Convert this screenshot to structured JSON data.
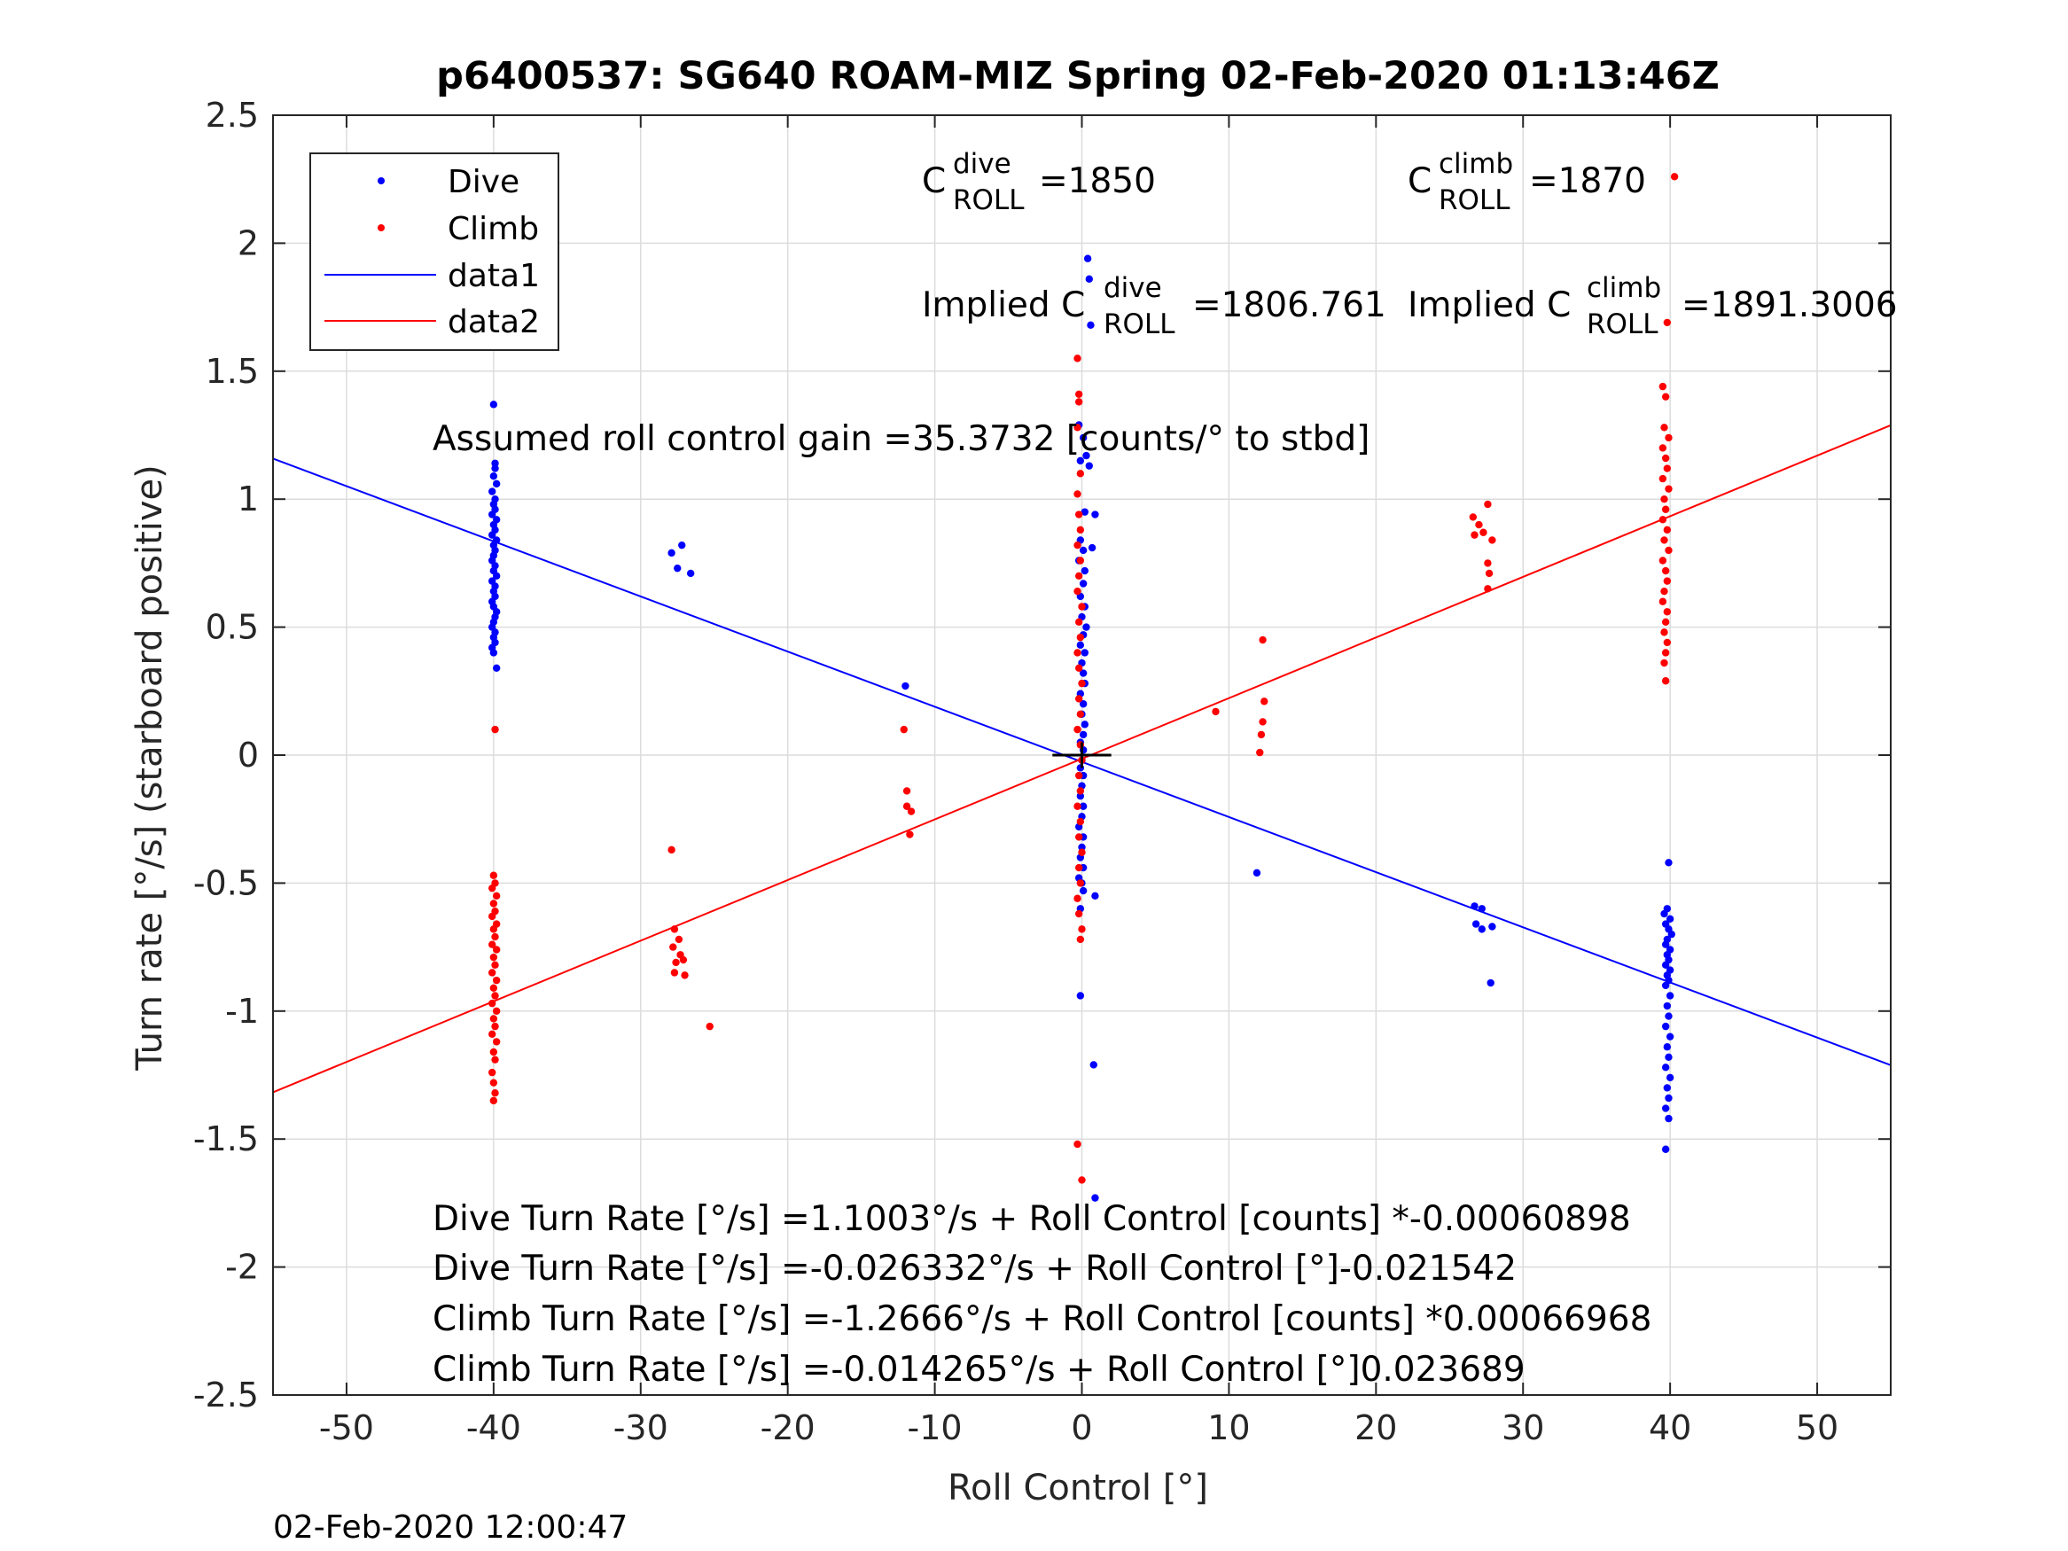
{
  "title": "p6400537: SG640 ROAM-MIZ Spring 02-Feb-2020 01:13:46Z",
  "footer_timestamp": "02-Feb-2020 12:00:47",
  "colors": {
    "dive": "#0000ff",
    "climb": "#ff0000",
    "axis": "#262626",
    "grid": "#dcdcdc"
  },
  "legend": {
    "entries": [
      "Dive",
      "Climb",
      "data1",
      "data2"
    ],
    "placement": "top-left"
  },
  "annotations": {
    "c_dive": {
      "base": "C",
      "sup": "dive",
      "sub": "ROLL",
      "value": "=1850"
    },
    "c_climb": {
      "base": "C",
      "sup": "climb",
      "sub": "ROLL",
      "value": "=1870"
    },
    "implied_dive": {
      "prefix": "Implied C",
      "sup": "dive",
      "sub": "ROLL",
      "value": "=1806.761"
    },
    "implied_climb": {
      "prefix": "Implied C",
      "sup": "climb",
      "sub": "ROLL",
      "value": "=1891.3006"
    },
    "gain": "Assumed roll control gain =35.3732 [counts/° to stbd]",
    "eq1": "Dive Turn Rate [°/s] =1.1003°/s + Roll Control [counts] *-0.00060898",
    "eq2": "Dive Turn Rate [°/s] =-0.026332°/s + Roll Control [°]-0.021542",
    "eq3": "Climb Turn Rate [°/s] =-1.2666°/s + Roll Control [counts] *0.00066968",
    "eq4": "Climb Turn Rate [°/s] =-0.014265°/s + Roll Control [°]0.023689"
  },
  "chart_data": {
    "type": "scatter",
    "xlabel": "Roll Control [°]",
    "ylabel": "Turn rate [°/s] (starboard positive)",
    "xlim": [
      -55,
      55
    ],
    "ylim": [
      -2.5,
      2.5
    ],
    "grid": true,
    "xticks": [
      -50,
      -40,
      -30,
      -20,
      -10,
      0,
      10,
      20,
      30,
      40,
      50
    ],
    "xtick_labels": [
      "-50",
      "-40",
      "-30",
      "-20",
      "-10",
      "0",
      "10",
      "20",
      "30",
      "40",
      "50"
    ],
    "yticks": [
      -2.5,
      -2,
      -1.5,
      -1,
      -0.5,
      0,
      0.5,
      1,
      1.5,
      2,
      2.5
    ],
    "ytick_labels": [
      "-2.5",
      "-2",
      "-1.5",
      "-1",
      "-0.5",
      "0",
      "0.5",
      "1",
      "1.5",
      "2",
      "2.5"
    ],
    "series": [
      {
        "name": "Dive",
        "kind": "points",
        "color": "#0000ff",
        "points": [
          [
            -40,
            1.37
          ],
          [
            -39.9,
            1.14
          ],
          [
            -39.9,
            1.12
          ],
          [
            -40,
            1.09
          ],
          [
            -39.8,
            1.06
          ],
          [
            -40.1,
            1.03
          ],
          [
            -39.9,
            1.0
          ],
          [
            -40,
            0.98
          ],
          [
            -39.9,
            0.96
          ],
          [
            -40.1,
            0.94
          ],
          [
            -39.8,
            0.92
          ],
          [
            -40,
            0.9
          ],
          [
            -39.9,
            0.88
          ],
          [
            -40.1,
            0.86
          ],
          [
            -39.8,
            0.84
          ],
          [
            -40,
            0.82
          ],
          [
            -39.9,
            0.8
          ],
          [
            -40,
            0.78
          ],
          [
            -40.1,
            0.76
          ],
          [
            -39.9,
            0.74
          ],
          [
            -40,
            0.72
          ],
          [
            -39.8,
            0.7
          ],
          [
            -40.1,
            0.68
          ],
          [
            -39.9,
            0.66
          ],
          [
            -40,
            0.64
          ],
          [
            -39.9,
            0.62
          ],
          [
            -40.1,
            0.6
          ],
          [
            -40,
            0.58
          ],
          [
            -39.8,
            0.56
          ],
          [
            -39.9,
            0.54
          ],
          [
            -40,
            0.52
          ],
          [
            -40.1,
            0.5
          ],
          [
            -39.9,
            0.48
          ],
          [
            -40,
            0.46
          ],
          [
            -39.9,
            0.44
          ],
          [
            -40.1,
            0.42
          ],
          [
            -40,
            0.4
          ],
          [
            -39.8,
            0.34
          ],
          [
            -27.9,
            0.79
          ],
          [
            -27.2,
            0.82
          ],
          [
            -27.5,
            0.73
          ],
          [
            -26.6,
            0.71
          ],
          [
            -12,
            0.27
          ],
          [
            11.9,
            -0.46
          ],
          [
            0.4,
            1.94
          ],
          [
            0.5,
            1.86
          ],
          [
            0.6,
            1.68
          ],
          [
            -0.2,
            1.29
          ],
          [
            0.1,
            1.24
          ],
          [
            0.3,
            1.17
          ],
          [
            0.5,
            1.13
          ],
          [
            -0.1,
            1.15
          ],
          [
            0.2,
            0.95
          ],
          [
            0.9,
            0.94
          ],
          [
            0.7,
            0.81
          ],
          [
            -0.1,
            0.84
          ],
          [
            0.1,
            0.8
          ],
          [
            -0.2,
            0.76
          ],
          [
            0.2,
            0.72
          ],
          [
            0.1,
            0.67
          ],
          [
            -0.1,
            0.62
          ],
          [
            0.2,
            0.58
          ],
          [
            0,
            0.54
          ],
          [
            0.3,
            0.5
          ],
          [
            0.1,
            0.47
          ],
          [
            -0.1,
            0.43
          ],
          [
            0.2,
            0.4
          ],
          [
            0,
            0.36
          ],
          [
            0.1,
            0.32
          ],
          [
            0.2,
            0.28
          ],
          [
            -0.1,
            0.24
          ],
          [
            0.1,
            0.2
          ],
          [
            0,
            0.16
          ],
          [
            0.2,
            0.12
          ],
          [
            0.1,
            0.08
          ],
          [
            -0.1,
            0.05
          ],
          [
            0.1,
            0.02
          ],
          [
            0,
            -0.02
          ],
          [
            -0.1,
            -0.05
          ],
          [
            0.1,
            -0.08
          ],
          [
            0,
            -0.12
          ],
          [
            -0.1,
            -0.16
          ],
          [
            0.1,
            -0.2
          ],
          [
            0,
            -0.24
          ],
          [
            -0.2,
            -0.28
          ],
          [
            0.1,
            -0.32
          ],
          [
            0,
            -0.36
          ],
          [
            -0.1,
            -0.4
          ],
          [
            0.1,
            -0.44
          ],
          [
            -0.2,
            -0.48
          ],
          [
            0,
            -0.5
          ],
          [
            0.1,
            -0.53
          ],
          [
            0.9,
            -0.55
          ],
          [
            -0.1,
            -0.6
          ],
          [
            -0.1,
            -0.94
          ],
          [
            0.8,
            -1.21
          ],
          [
            0.9,
            -1.73
          ],
          [
            26.7,
            -0.59
          ],
          [
            27.2,
            -0.6
          ],
          [
            26.8,
            -0.66
          ],
          [
            27.2,
            -0.68
          ],
          [
            27.9,
            -0.67
          ],
          [
            27.8,
            -0.89
          ],
          [
            39.9,
            -0.42
          ],
          [
            39.8,
            -0.6
          ],
          [
            39.6,
            -0.62
          ],
          [
            40,
            -0.64
          ],
          [
            39.7,
            -0.66
          ],
          [
            39.9,
            -0.68
          ],
          [
            40.1,
            -0.7
          ],
          [
            39.8,
            -0.72
          ],
          [
            39.7,
            -0.74
          ],
          [
            40,
            -0.76
          ],
          [
            39.8,
            -0.78
          ],
          [
            39.9,
            -0.8
          ],
          [
            39.7,
            -0.82
          ],
          [
            40,
            -0.84
          ],
          [
            39.8,
            -0.86
          ],
          [
            39.9,
            -0.88
          ],
          [
            39.7,
            -0.9
          ],
          [
            40,
            -0.94
          ],
          [
            39.8,
            -0.98
          ],
          [
            39.9,
            -1.02
          ],
          [
            39.7,
            -1.06
          ],
          [
            40,
            -1.1
          ],
          [
            39.8,
            -1.14
          ],
          [
            39.9,
            -1.18
          ],
          [
            39.7,
            -1.22
          ],
          [
            40,
            -1.26
          ],
          [
            39.8,
            -1.3
          ],
          [
            39.9,
            -1.34
          ],
          [
            39.7,
            -1.38
          ],
          [
            39.9,
            -1.42
          ],
          [
            39.7,
            -1.54
          ]
        ]
      },
      {
        "name": "Climb",
        "kind": "points",
        "color": "#ff0000",
        "points": [
          [
            -39.9,
            0.1
          ],
          [
            -40,
            -0.47
          ],
          [
            -39.9,
            -0.5
          ],
          [
            -40.1,
            -0.52
          ],
          [
            -39.8,
            -0.55
          ],
          [
            -40,
            -0.58
          ],
          [
            -39.9,
            -0.61
          ],
          [
            -40.1,
            -0.63
          ],
          [
            -39.8,
            -0.66
          ],
          [
            -40,
            -0.68
          ],
          [
            -39.9,
            -0.71
          ],
          [
            -40.1,
            -0.74
          ],
          [
            -39.8,
            -0.76
          ],
          [
            -40,
            -0.79
          ],
          [
            -39.9,
            -0.82
          ],
          [
            -40.1,
            -0.85
          ],
          [
            -39.8,
            -0.88
          ],
          [
            -40,
            -0.91
          ],
          [
            -39.9,
            -0.94
          ],
          [
            -40.1,
            -0.97
          ],
          [
            -39.8,
            -1.0
          ],
          [
            -40,
            -1.03
          ],
          [
            -39.9,
            -1.06
          ],
          [
            -40.1,
            -1.09
          ],
          [
            -39.8,
            -1.12
          ],
          [
            -40,
            -1.16
          ],
          [
            -39.9,
            -1.19
          ],
          [
            -40.1,
            -1.24
          ],
          [
            -40,
            -1.28
          ],
          [
            -39.9,
            -1.32
          ],
          [
            -40,
            -1.35
          ],
          [
            -27.9,
            -0.37
          ],
          [
            -27.7,
            -0.68
          ],
          [
            -27.4,
            -0.72
          ],
          [
            -27.8,
            -0.75
          ],
          [
            -27.3,
            -0.78
          ],
          [
            -27.6,
            -0.81
          ],
          [
            -27.1,
            -0.8
          ],
          [
            -27.7,
            -0.85
          ],
          [
            -27.0,
            -0.86
          ],
          [
            -25.3,
            -1.06
          ],
          [
            -12.1,
            0.1
          ],
          [
            -11.9,
            -0.14
          ],
          [
            -11.9,
            -0.2
          ],
          [
            -11.6,
            -0.22
          ],
          [
            -11.7,
            -0.31
          ],
          [
            9.1,
            0.17
          ],
          [
            12.1,
            0.01
          ],
          [
            12.2,
            0.08
          ],
          [
            12.3,
            0.13
          ],
          [
            12.4,
            0.21
          ],
          [
            12.3,
            0.45
          ],
          [
            -0.3,
            1.55
          ],
          [
            -0.2,
            1.41
          ],
          [
            -0.2,
            1.38
          ],
          [
            -0.3,
            1.28
          ],
          [
            -0.1,
            1.1
          ],
          [
            -0.3,
            1.02
          ],
          [
            -0.2,
            0.94
          ],
          [
            -0.1,
            0.88
          ],
          [
            -0.3,
            0.82
          ],
          [
            -0.1,
            0.76
          ],
          [
            -0.2,
            0.7
          ],
          [
            -0.3,
            0.64
          ],
          [
            0,
            0.58
          ],
          [
            -0.2,
            0.52
          ],
          [
            -0.1,
            0.46
          ],
          [
            -0.3,
            0.4
          ],
          [
            -0.2,
            0.34
          ],
          [
            0,
            0.28
          ],
          [
            -0.2,
            0.22
          ],
          [
            -0.1,
            0.16
          ],
          [
            -0.3,
            0.1
          ],
          [
            -0.1,
            0.04
          ],
          [
            0,
            -0.02
          ],
          [
            -0.2,
            -0.08
          ],
          [
            -0.1,
            -0.14
          ],
          [
            -0.3,
            -0.2
          ],
          [
            -0.1,
            -0.26
          ],
          [
            -0.2,
            -0.32
          ],
          [
            0,
            -0.38
          ],
          [
            -0.2,
            -0.44
          ],
          [
            -0.1,
            -0.5
          ],
          [
            -0.3,
            -0.56
          ],
          [
            -0.2,
            -0.62
          ],
          [
            0,
            -0.68
          ],
          [
            -0.1,
            -0.72
          ],
          [
            -0.3,
            -1.52
          ],
          [
            0,
            -1.66
          ],
          [
            26.6,
            0.93
          ],
          [
            27.0,
            0.9
          ],
          [
            27.6,
            0.98
          ],
          [
            26.7,
            0.86
          ],
          [
            27.3,
            0.87
          ],
          [
            27.9,
            0.84
          ],
          [
            27.6,
            0.75
          ],
          [
            27.7,
            0.71
          ],
          [
            27.6,
            0.65
          ],
          [
            40.3,
            2.26
          ],
          [
            39.8,
            1.69
          ],
          [
            39.5,
            1.44
          ],
          [
            39.7,
            1.4
          ],
          [
            39.6,
            1.28
          ],
          [
            39.9,
            1.24
          ],
          [
            39.5,
            1.2
          ],
          [
            39.7,
            1.16
          ],
          [
            39.8,
            1.12
          ],
          [
            39.5,
            1.08
          ],
          [
            39.9,
            1.04
          ],
          [
            39.6,
            1.0
          ],
          [
            39.7,
            0.96
          ],
          [
            39.5,
            0.92
          ],
          [
            39.8,
            0.88
          ],
          [
            39.6,
            0.84
          ],
          [
            39.9,
            0.8
          ],
          [
            39.5,
            0.76
          ],
          [
            39.7,
            0.72
          ],
          [
            39.8,
            0.68
          ],
          [
            39.6,
            0.64
          ],
          [
            39.5,
            0.6
          ],
          [
            39.8,
            0.56
          ],
          [
            39.7,
            0.52
          ],
          [
            39.6,
            0.48
          ],
          [
            39.8,
            0.44
          ],
          [
            39.7,
            0.4
          ],
          [
            39.6,
            0.36
          ],
          [
            39.7,
            0.29
          ]
        ]
      },
      {
        "name": "data1",
        "kind": "line",
        "color": "#0000ff",
        "points": [
          [
            -55,
            1.1585
          ],
          [
            55,
            -1.2112
          ]
        ]
      },
      {
        "name": "data2",
        "kind": "line",
        "color": "#ff0000",
        "points": [
          [
            -55,
            -1.3172
          ],
          [
            55,
            1.2886
          ]
        ]
      }
    ]
  }
}
